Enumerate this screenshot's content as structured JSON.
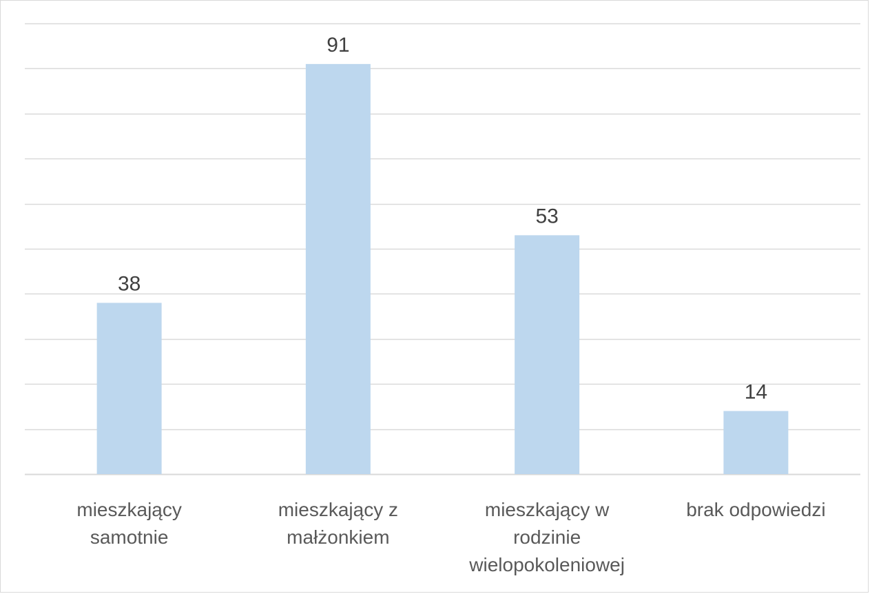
{
  "chart_data": {
    "type": "bar",
    "categories": [
      [
        "mieszkający",
        "samotnie"
      ],
      [
        "mieszkający z",
        "małżonkiem"
      ],
      [
        "mieszkający w",
        "rodzinie",
        "wielopokoleniowej"
      ],
      [
        "brak odpowiedzi"
      ]
    ],
    "values": [
      38,
      91,
      53,
      14
    ],
    "data_labels": [
      "38",
      "91",
      "53",
      "14"
    ],
    "ylim": [
      0,
      100
    ],
    "gridlines": true,
    "y_axis_labels_shown": false,
    "bar_color": "#bdd7ee",
    "gridline_color": "#d9d9d9"
  }
}
